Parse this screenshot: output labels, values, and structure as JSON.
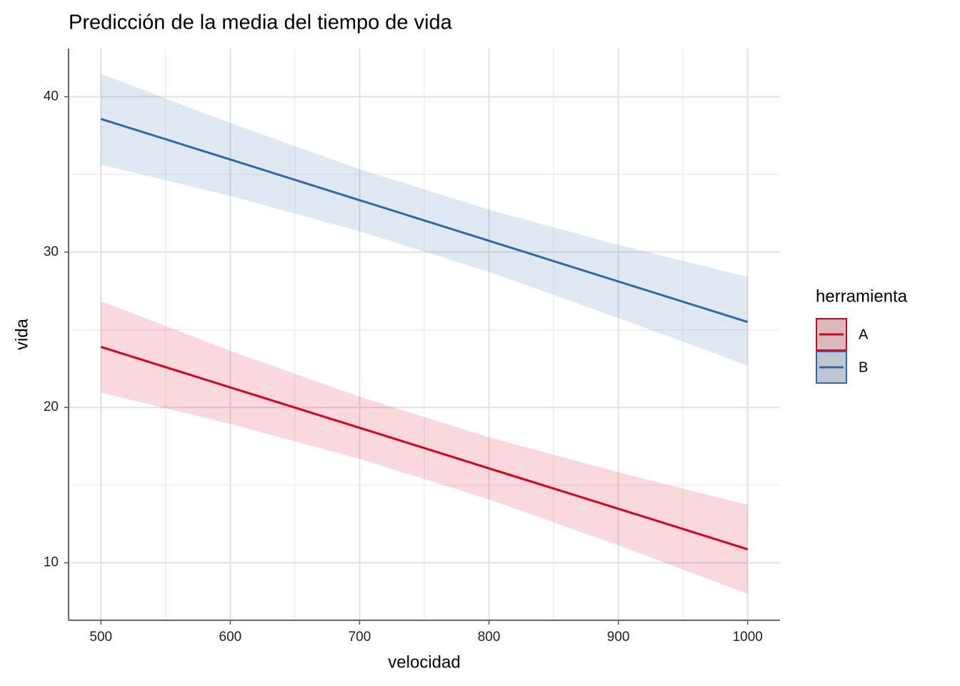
{
  "chart_data": {
    "type": "line",
    "title": "Predicción de la media del tiempo de vida",
    "x_label": "velocidad",
    "y_label": "vida",
    "legend_title": "herramienta",
    "legend": "right",
    "x": [
      500,
      600,
      700,
      800,
      900,
      1000
    ],
    "series": [
      {
        "name": "A",
        "color": "#d7001d",
        "values": [
          23.9,
          21.29,
          18.69,
          16.08,
          13.48,
          10.87
        ],
        "lower": [
          20.95,
          18.94,
          16.69,
          14.08,
          11.13,
          8.0
        ],
        "upper": [
          26.84,
          23.64,
          20.69,
          18.08,
          15.83,
          13.73
        ]
      },
      {
        "name": "B",
        "color": "#3068ad",
        "values": [
          38.57,
          35.96,
          33.34,
          30.73,
          28.11,
          25.5
        ],
        "lower": [
          35.63,
          33.61,
          31.34,
          28.73,
          25.76,
          22.7
        ],
        "upper": [
          41.47,
          38.31,
          35.34,
          32.73,
          30.46,
          28.4
        ]
      }
    ],
    "xlim": [
      475,
      1025
    ],
    "xticks": [
      500,
      600,
      700,
      800,
      900,
      1000
    ],
    "xminor": [
      550,
      650,
      750,
      850,
      950
    ],
    "ylim": [
      6.3,
      43.1
    ],
    "yticks": [
      10,
      20,
      30,
      40
    ],
    "yminor": [
      15,
      25,
      35
    ],
    "grid": true,
    "band_opacity": 0.15
  }
}
